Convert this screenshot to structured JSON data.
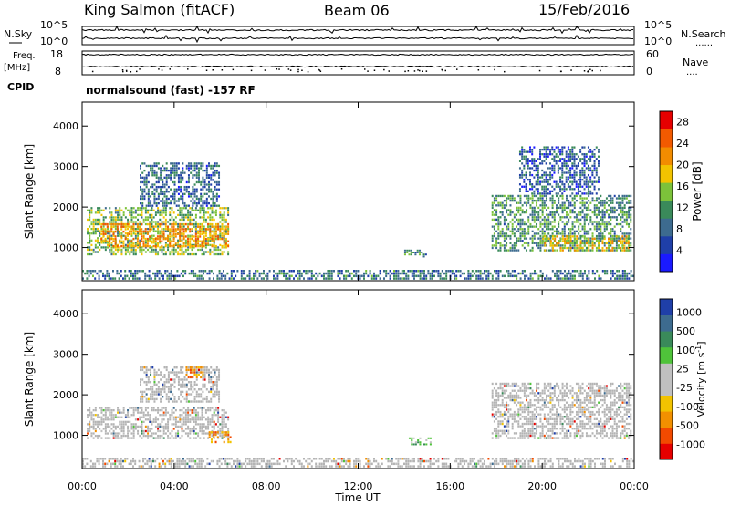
{
  "header": {
    "station": "King Salmon (fitACF)",
    "beam": "Beam 06",
    "date": "15/Feb/2016"
  },
  "status_panels": {
    "nsky_label": "N.Sky",
    "nsearch_label": "N.Search",
    "freq_label": "Freq.",
    "freq_unit": "[MHz]",
    "nave_label": "Nave",
    "cpid_label": "CPID",
    "cpid_text": "normalsound (fast) -157 RF",
    "noise_ticks_left": [
      "10^5",
      "10^0"
    ],
    "noise_ticks_right": [
      "10^5",
      "10^0"
    ],
    "freq_ticks": [
      18,
      8
    ],
    "nave_ticks": [
      60,
      0
    ],
    "dotted_marker": "......",
    "dotted_marker_short": "...."
  },
  "colors": {
    "power_scale": [
      "#1a1aff",
      "#1f3fa8",
      "#3d6b8f",
      "#3a8a5a",
      "#7cc23a",
      "#f2c300",
      "#f28c00",
      "#f25a00",
      "#e60000"
    ],
    "velocity_scale": [
      "#e60000",
      "#f24a00",
      "#f29000",
      "#f2c300",
      "#c0c0c0",
      "#c0c0c0",
      "#4fc33a",
      "#3a8a5a",
      "#3d6b8f",
      "#1f3fa8"
    ],
    "ground_scatter": "#b4b4b4"
  },
  "chart_data": [
    {
      "type": "heatmap",
      "title": "",
      "ylabel": "Slant Range [km]",
      "xlabel": "",
      "ylim": [
        180,
        4590
      ],
      "yticks": [
        1000,
        2000,
        3000,
        4000
      ],
      "xlim": [
        0,
        24
      ],
      "colorbar": {
        "label": "Power [dB]",
        "ticks": [
          4,
          8,
          12,
          16,
          20,
          24,
          28
        ],
        "range": [
          0,
          30
        ]
      },
      "scatter_regions": [
        {
          "name": "",
          "t0": 0.2,
          "t1": 6.4,
          "r0": 800,
          "r1": 2000,
          "value": 14
        },
        {
          "name": "",
          "t0": 0.8,
          "t1": 6.4,
          "r0": 1000,
          "r1": 1600,
          "value": 22
        },
        {
          "name": "",
          "t0": 2.5,
          "t1": 6.0,
          "r0": 2000,
          "r1": 3100,
          "value": 7
        },
        {
          "name": "",
          "t0": 14.0,
          "t1": 15.0,
          "r0": 750,
          "r1": 950,
          "value": 10
        },
        {
          "name": "",
          "t0": 17.8,
          "t1": 23.9,
          "r0": 900,
          "r1": 2300,
          "value": 11
        },
        {
          "name": "",
          "t0": 20.0,
          "t1": 23.8,
          "r0": 900,
          "r1": 1300,
          "value": 18
        },
        {
          "name": "",
          "t0": 19.0,
          "t1": 22.5,
          "r0": 2300,
          "r1": 3500,
          "value": 6
        },
        {
          "name": "",
          "t0": 0.0,
          "t1": 24.0,
          "r0": 200,
          "r1": 450,
          "value": 8
        }
      ]
    },
    {
      "type": "heatmap",
      "title": "",
      "ylabel": "Slant Range [km]",
      "xlabel": "Time UT",
      "ylim": [
        180,
        4590
      ],
      "yticks": [
        1000,
        2000,
        3000,
        4000
      ],
      "xlim": [
        0,
        24
      ],
      "xticks": [
        "00:00",
        "04:00",
        "08:00",
        "12:00",
        "16:00",
        "20:00",
        "00:00"
      ],
      "colorbar": {
        "label": "Velocity [m s",
        "label_exponent": "-1",
        "label_close": "]",
        "ticks": [
          1000,
          500,
          100,
          25,
          -25,
          -100,
          -500,
          -1000
        ]
      },
      "scatter_regions": [
        {
          "name": "",
          "t0": 0.2,
          "t1": 6.4,
          "r0": 900,
          "r1": 1700,
          "value": 0
        },
        {
          "name": "",
          "t0": 2.5,
          "t1": 6.0,
          "r0": 1800,
          "r1": 2700,
          "value": 0
        },
        {
          "name": "",
          "t0": 4.5,
          "t1": 5.3,
          "r0": 2400,
          "r1": 2700,
          "value": -300
        },
        {
          "name": "",
          "t0": 5.5,
          "t1": 6.5,
          "r0": 800,
          "r1": 1100,
          "value": -150
        },
        {
          "name": "",
          "t0": 14.2,
          "t1": 15.2,
          "r0": 750,
          "r1": 950,
          "value": 90
        },
        {
          "name": "",
          "t0": 17.8,
          "t1": 23.9,
          "r0": 900,
          "r1": 2300,
          "value": 0
        },
        {
          "name": "",
          "t0": 0.0,
          "t1": 24.0,
          "r0": 200,
          "r1": 450,
          "value": 15
        }
      ]
    }
  ]
}
